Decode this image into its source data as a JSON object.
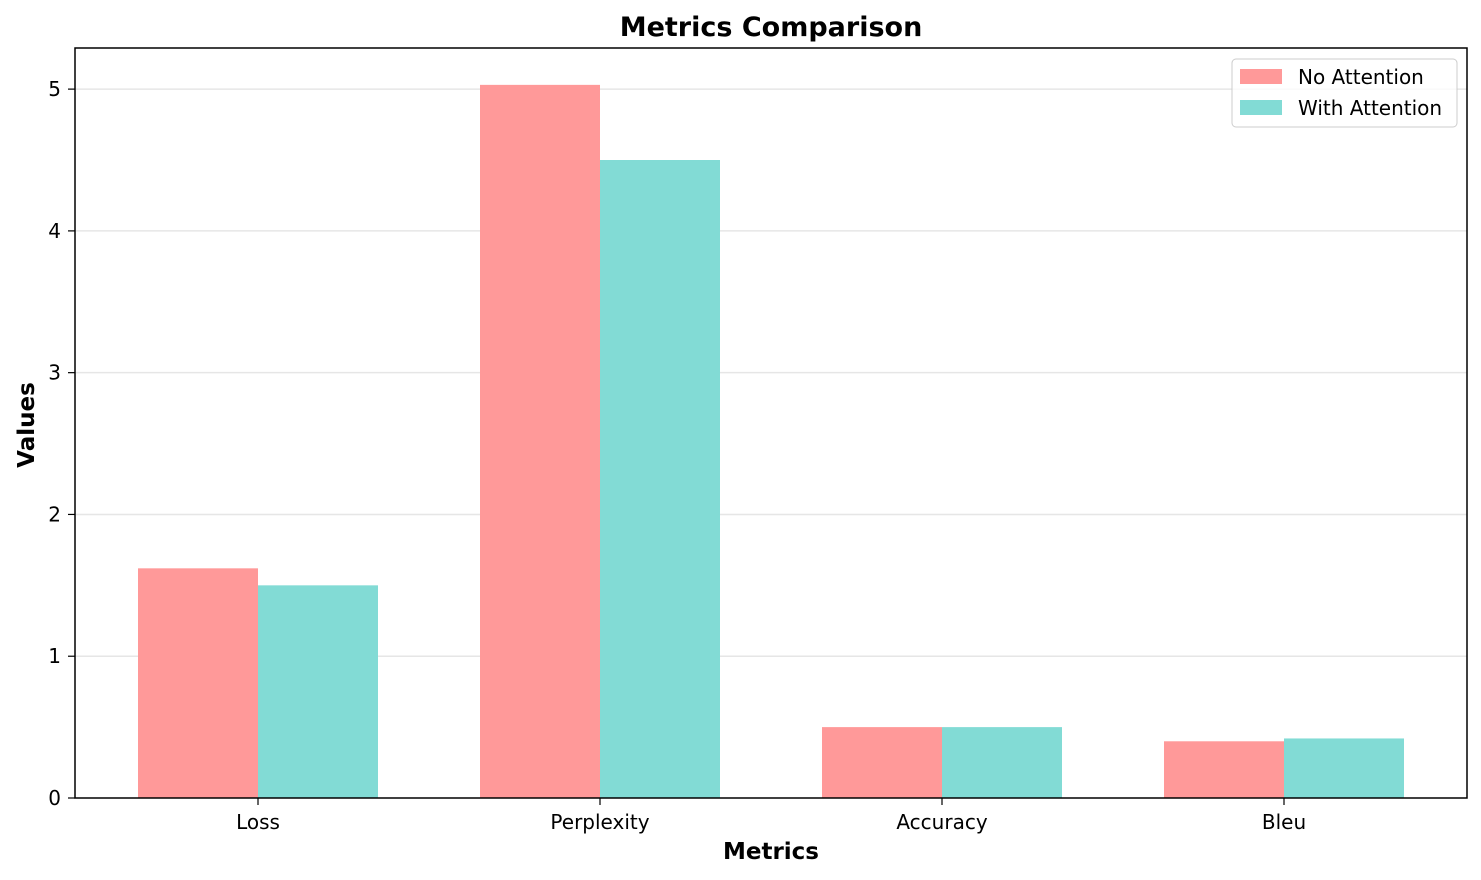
{
  "chart_data": {
    "type": "bar",
    "title": "Metrics Comparison",
    "xlabel": "Metrics",
    "ylabel": "Values",
    "categories": [
      "Loss",
      "Perplexity",
      "Accuracy",
      "Bleu"
    ],
    "series": [
      {
        "name": "No Attention",
        "values": [
          1.62,
          5.03,
          0.5,
          0.4
        ],
        "color": "#ff9999"
      },
      {
        "name": "With Attention",
        "values": [
          1.5,
          4.5,
          0.5,
          0.42
        ],
        "color": "#82dbd5"
      }
    ],
    "ylim": [
      0,
      5.29
    ],
    "yticks": [
      "0",
      "1",
      "2",
      "3",
      "4",
      "5"
    ],
    "grid": "y",
    "legend_position": "top-right"
  }
}
